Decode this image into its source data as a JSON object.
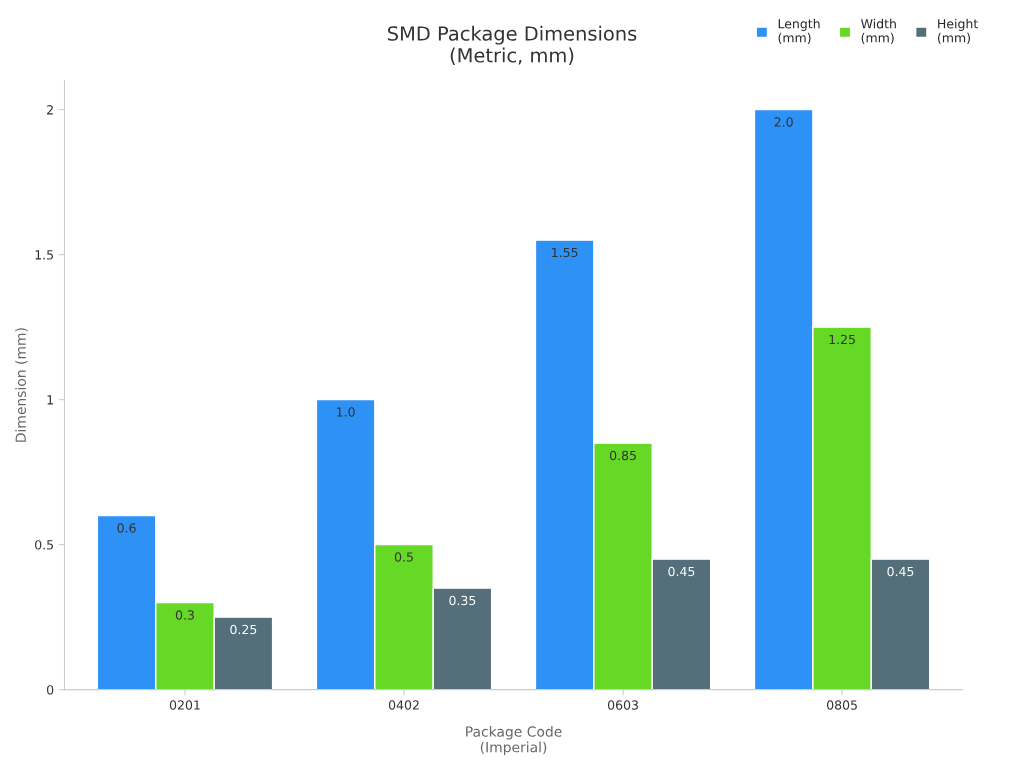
{
  "chart_data": {
    "type": "bar",
    "title": "SMD Package Dimensions\n(Metric, mm)",
    "xlabel": "Package Code\n(Imperial)",
    "ylabel": "Dimension (mm)",
    "categories": [
      "0201",
      "0402",
      "0603",
      "0805"
    ],
    "series": [
      {
        "name": "Length\n(mm)",
        "color": "#2e91f5",
        "values": [
          0.6,
          1.0,
          1.55,
          2.0
        ],
        "value_labels": [
          "0.6",
          "1.0",
          "1.55",
          "2.0"
        ]
      },
      {
        "name": "Width\n(mm)",
        "color": "#66d926",
        "values": [
          0.3,
          0.5,
          0.85,
          1.25
        ],
        "value_labels": [
          "0.3",
          "0.5",
          "0.85",
          "1.25"
        ]
      },
      {
        "name": "Height\n(mm)",
        "color": "#546e7a",
        "values": [
          0.25,
          0.35,
          0.45,
          0.45
        ],
        "value_labels": [
          "0.25",
          "0.35",
          "0.45",
          "0.45"
        ]
      }
    ],
    "ylim": [
      0,
      2.1
    ],
    "yticks": [
      0,
      0.5,
      1,
      1.5,
      2
    ],
    "grid": false,
    "legend": "top right"
  }
}
